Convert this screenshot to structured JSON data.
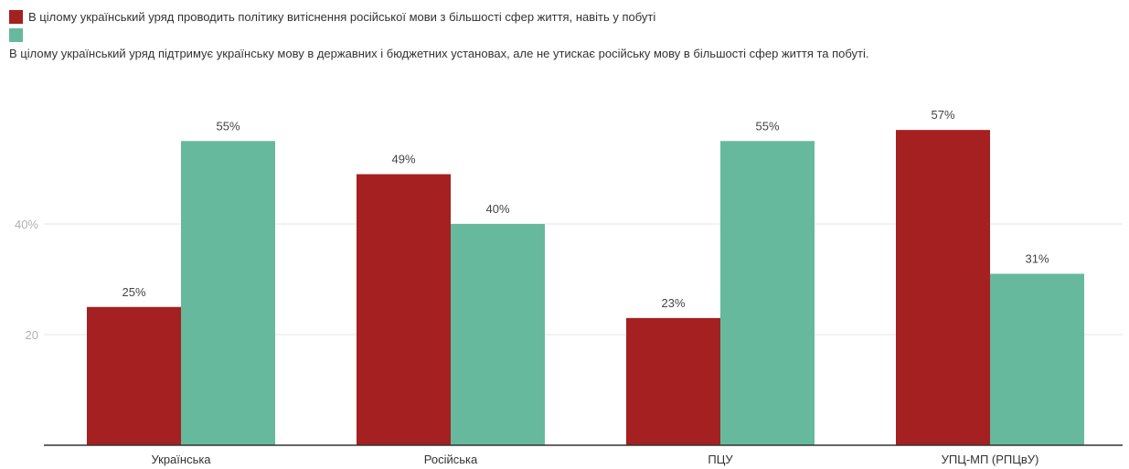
{
  "legend": [
    {
      "label": "В цілому український уряд проводить політику витіснення російської мови з більшості сфер життя, навіть у побуті",
      "color": "#a52021"
    },
    {
      "label": "В цілому український уряд підтримує українську мову в державних і бюджетних установах, але не утискає російську мову в більшості сфер життя та побуті.",
      "color": "#66b99c"
    }
  ],
  "chart_data": {
    "type": "bar",
    "categories": [
      "Українська",
      "Російська",
      "ПЦУ",
      "УПЦ-МП (РПЦвУ)"
    ],
    "series": [
      {
        "name": "В цілому український уряд проводить політику витіснення російської мови з більшості сфер життя, навіть у побуті",
        "values": [
          25,
          49,
          23,
          57
        ],
        "labels": [
          "25%",
          "49%",
          "23%",
          "57%"
        ],
        "color": "#a52021"
      },
      {
        "name": "В цілому український уряд підтримує українську мову в державних і бюджетних установах, але не утискає російську мову в більшості сфер життя та побуті.",
        "values": [
          55,
          40,
          55,
          31
        ],
        "labels": [
          "55%",
          "40%",
          "55%",
          "31%"
        ],
        "color": "#66b99c"
      }
    ],
    "yticks": [
      20,
      40
    ],
    "ytick_labels": [
      "20",
      "40%"
    ],
    "ylim": [
      0,
      60
    ],
    "grid": true,
    "legend_position": "top-left",
    "title": "",
    "xlabel": "",
    "ylabel": ""
  }
}
